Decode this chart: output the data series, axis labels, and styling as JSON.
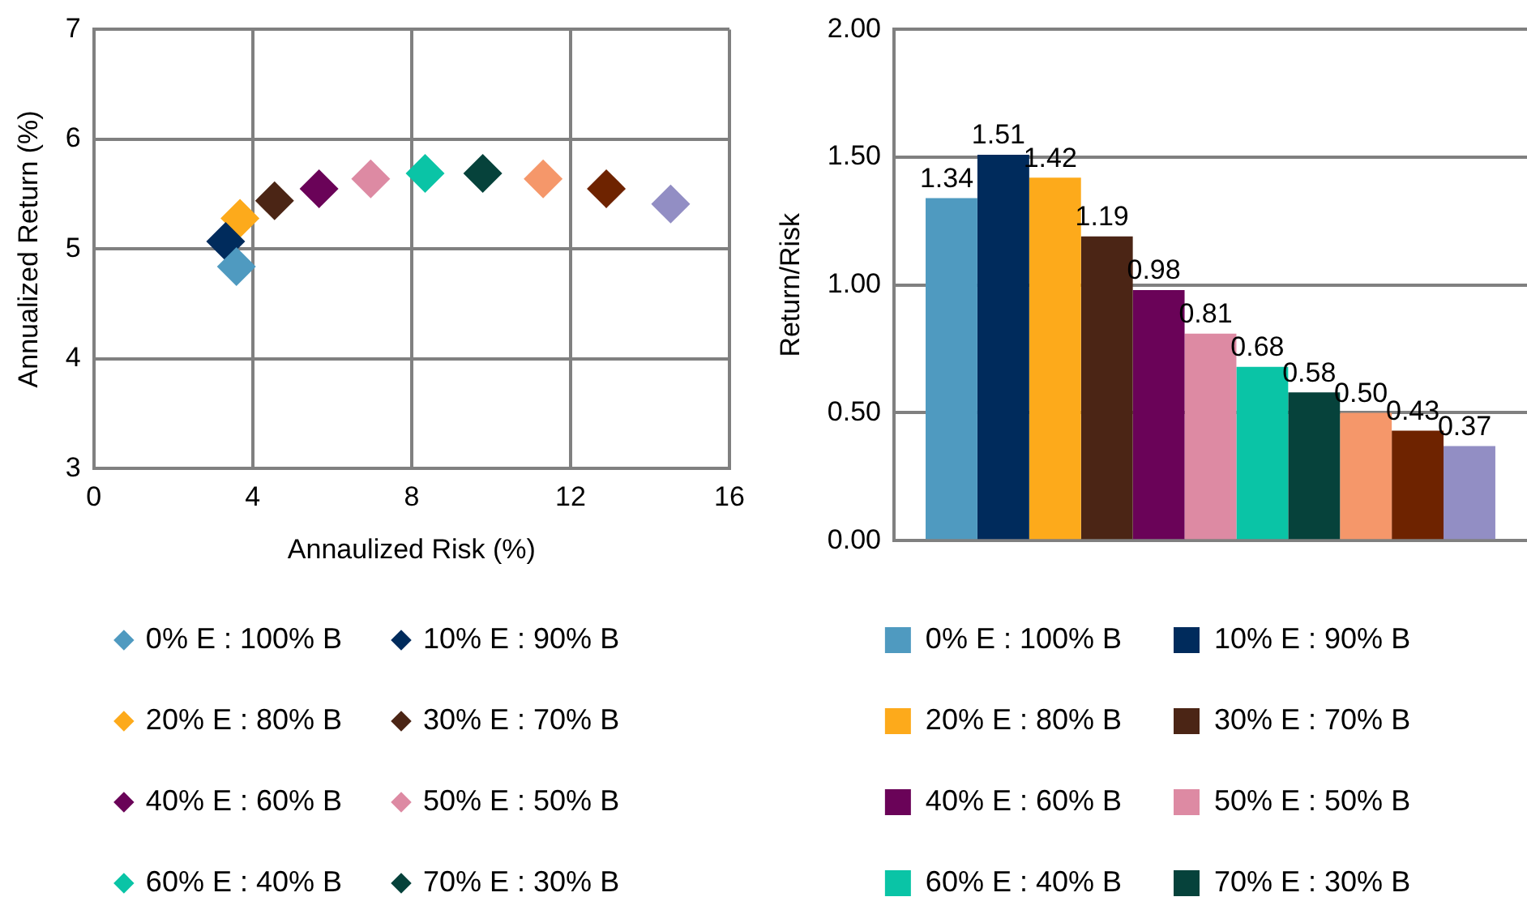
{
  "chart_data": [
    {
      "type": "scatter",
      "xlabel": "Annaulized Risk (%)",
      "ylabel": "Annualized Return (%)",
      "xlim": [
        0,
        16
      ],
      "xticks": [
        0,
        4,
        8,
        12,
        16
      ],
      "ylim": [
        3,
        7
      ],
      "yticks": [
        3,
        4,
        5,
        6,
        7
      ],
      "grid": true,
      "legend": "bottom",
      "marker": "diamond",
      "series": [
        {
          "name": "0% E : 100% B",
          "color": "#4f9ac0",
          "x": [
            3.59
          ],
          "values": [
            4.84
          ]
        },
        {
          "name": "10% E : 90% B",
          "color": "#002b5c",
          "x": [
            3.32
          ],
          "values": [
            5.07
          ]
        },
        {
          "name": "20% E : 80% B",
          "color": "#fdaa1b",
          "x": [
            3.68
          ],
          "values": [
            5.28
          ]
        },
        {
          "name": "30% E : 70% B",
          "color": "#4b2515",
          "x": [
            4.55
          ],
          "values": [
            5.44
          ]
        },
        {
          "name": "40% E : 60% B",
          "color": "#6a0358",
          "x": [
            5.67
          ],
          "values": [
            5.55
          ]
        },
        {
          "name": "50% E : 50% B",
          "color": "#dd8aa3",
          "x": [
            6.97
          ],
          "values": [
            5.64
          ]
        },
        {
          "name": "60% E : 40% B",
          "color": "#0ac4a6",
          "x": [
            8.34
          ],
          "values": [
            5.69
          ]
        },
        {
          "name": "70% E : 30% B",
          "color": "#06423b",
          "x": [
            9.79
          ],
          "values": [
            5.69
          ]
        },
        {
          "color": "#f5976a",
          "x": [
            11.31
          ],
          "values": [
            5.64
          ]
        },
        {
          "color": "#6e2300",
          "x": [
            12.9
          ],
          "values": [
            5.55
          ]
        },
        {
          "color": "#928ec4",
          "x": [
            14.52
          ],
          "values": [
            5.41
          ]
        }
      ]
    },
    {
      "type": "bar",
      "ylabel": "Return/Risk",
      "categories": [
        null
      ],
      "ylim": [
        0,
        2
      ],
      "yticks": [
        {
          "value": 0,
          "label": "0.00"
        },
        {
          "value": 0.5,
          "label": "0.50"
        },
        {
          "value": 1,
          "label": "1.00"
        },
        {
          "value": 1.5,
          "label": "1.50"
        },
        {
          "value": 2,
          "label": "2.00"
        }
      ],
      "grid": "y",
      "legend": "bottom",
      "series": [
        {
          "name": "0% E : 100% B",
          "color": "#4f9ac0",
          "values": [
            1.34
          ],
          "value_labels": [
            "1.34"
          ]
        },
        {
          "name": "10% E : 90% B",
          "color": "#002b5c",
          "values": [
            1.51
          ],
          "value_labels": [
            "1.51"
          ]
        },
        {
          "name": "20% E : 80% B",
          "color": "#fdaa1b",
          "values": [
            1.42
          ],
          "value_labels": [
            "1.42"
          ]
        },
        {
          "name": "30% E : 70% B",
          "color": "#4b2515",
          "values": [
            1.19
          ],
          "value_labels": [
            "1.19"
          ]
        },
        {
          "name": "40% E : 60% B",
          "color": "#6a0358",
          "values": [
            0.98
          ],
          "value_labels": [
            "0.98"
          ]
        },
        {
          "name": "50% E : 50% B",
          "color": "#dd8aa3",
          "values": [
            0.81
          ],
          "value_labels": [
            "0.81"
          ]
        },
        {
          "name": "60% E : 40% B",
          "color": "#0ac4a6",
          "values": [
            0.68
          ],
          "value_labels": [
            "0.68"
          ]
        },
        {
          "name": "70% E : 30% B",
          "color": "#06423b",
          "values": [
            0.58
          ],
          "value_labels": [
            "0.58"
          ]
        },
        {
          "color": "#f5976a",
          "values": [
            0.5
          ],
          "value_labels": [
            "0.50"
          ]
        },
        {
          "color": "#6e2300",
          "values": [
            0.43
          ],
          "value_labels": [
            "0.43"
          ]
        },
        {
          "color": "#928ec4",
          "values": [
            0.37
          ],
          "value_labels": [
            "0.37"
          ]
        }
      ]
    }
  ]
}
